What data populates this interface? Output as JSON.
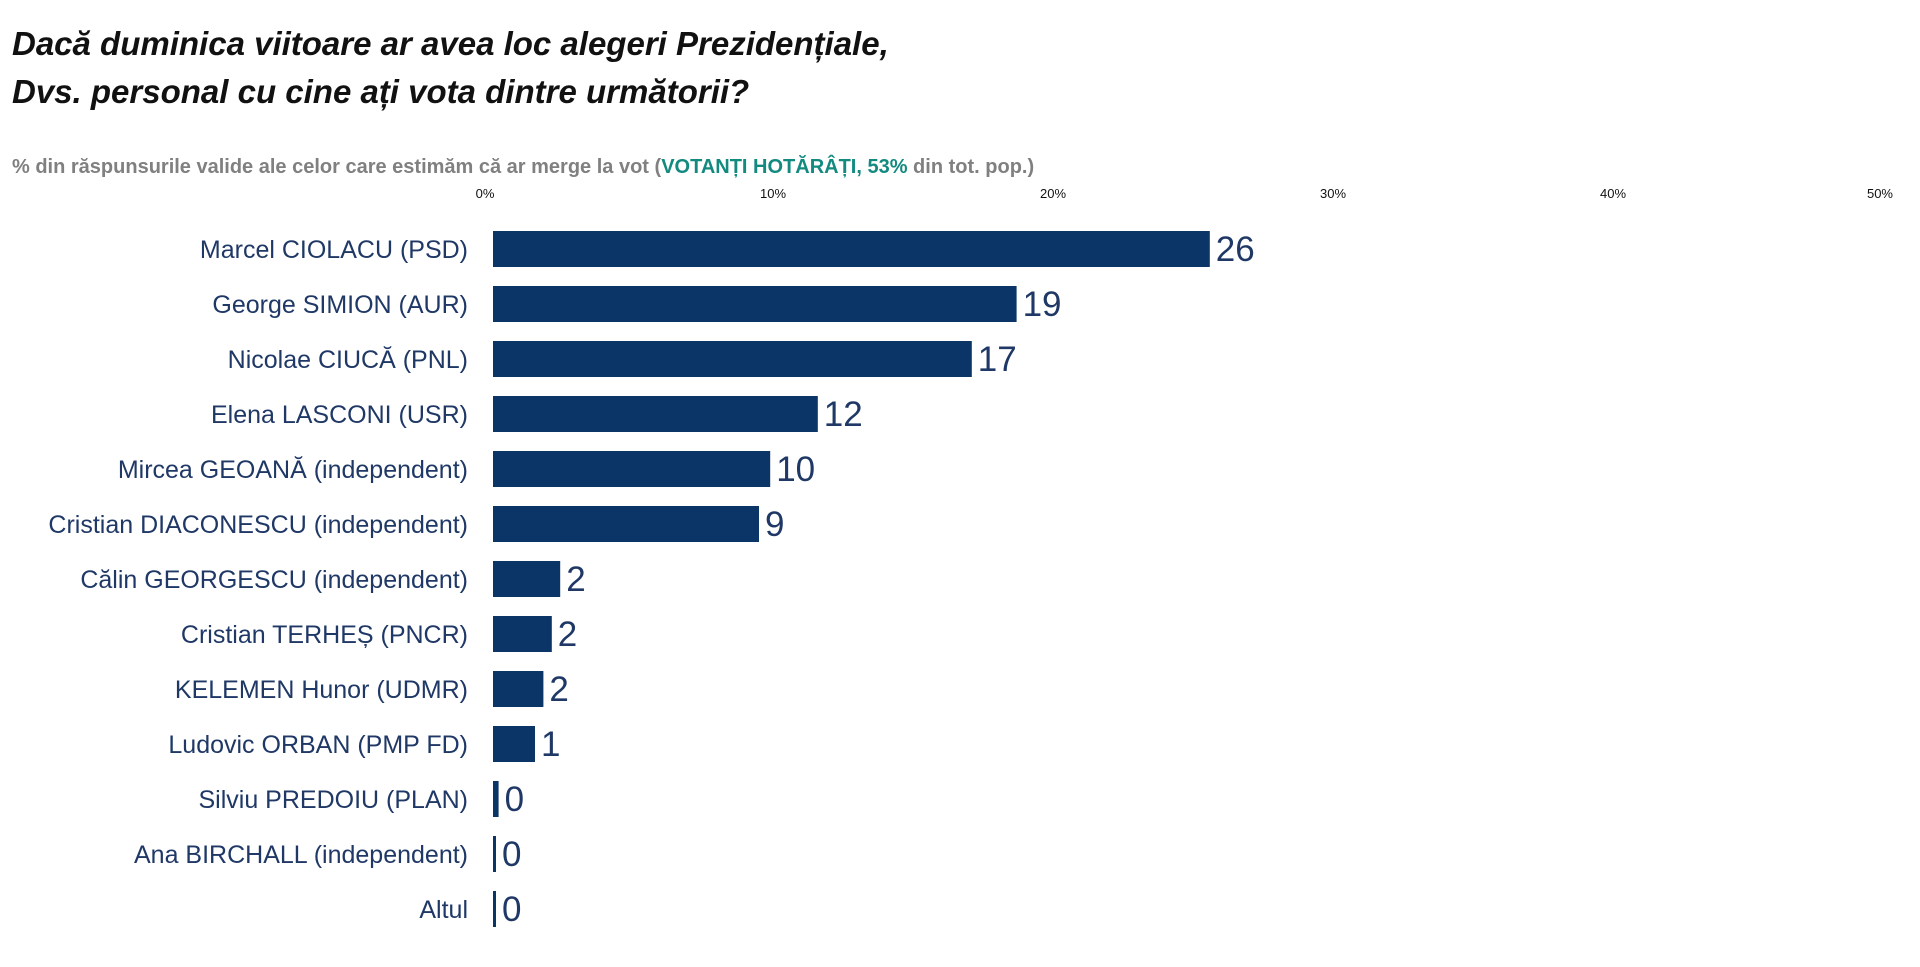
{
  "header": {
    "title_line1": "Dacă duminica viitoare ar avea loc alegeri Prezidențiale,",
    "title_line2": "Dvs. personal cu cine ați vota dintre următorii?",
    "subtitle_before": "% din răspunsurile valide ale celor care estimăm că ar merge la vot (",
    "subtitle_highlight": "VOTANȚI HOTĂRÂȚI, 53%",
    "subtitle_after": " din tot. pop.)"
  },
  "colors": {
    "bar": "#0b3566",
    "label": "#1f3866",
    "highlight": "#138a80",
    "subtitle": "#808080"
  },
  "chart_data": {
    "type": "bar",
    "orientation": "horizontal",
    "categories": [
      "Marcel CIOLACU (PSD)",
      "George SIMION (AUR)",
      "Nicolae CIUCĂ (PNL)",
      "Elena LASCONI (USR)",
      "Mircea GEOANĂ (independent)",
      "Cristian DIACONESCU (independent)",
      "Călin GEORGESCU (independent)",
      "Cristian TERHEȘ (PNCR)",
      "KELEMEN Hunor (UDMR)",
      "Ludovic ORBAN (PMP FD)",
      "Silviu PREDOIU (PLAN)",
      "Ana BIRCHALL (independent)",
      "Altul"
    ],
    "values": [
      25.6,
      18.7,
      17.1,
      11.6,
      9.9,
      9.5,
      2.4,
      2.1,
      1.8,
      1.5,
      0.2,
      0.1,
      0.1
    ],
    "data_labels": [
      "26",
      "19",
      "17",
      "12",
      "10",
      "9",
      "2",
      "2",
      "2",
      "1",
      "0",
      "0",
      "0"
    ],
    "xlim": [
      0,
      50
    ],
    "x_ticks": [
      0,
      10,
      20,
      30,
      40,
      50
    ],
    "x_tick_labels": [
      "0%",
      "10%",
      "20%",
      "30%",
      "40%",
      "50%"
    ],
    "x_axis_position": "top",
    "grid": false,
    "legend": "none"
  }
}
